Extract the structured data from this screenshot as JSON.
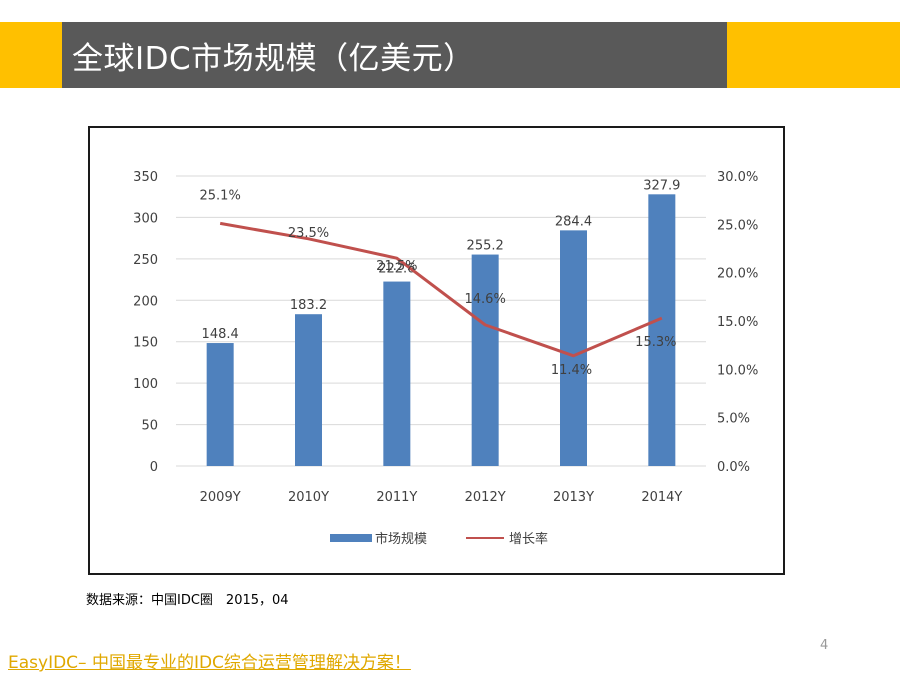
{
  "header": {
    "title": "全球IDC市场规模（亿美元）"
  },
  "footer": {
    "source": "数据来源：中国IDC圈　2015，04",
    "slogan": "EasyIDC– 中国最专业的IDC综合运营管理解决方案！",
    "page_number": "4"
  },
  "colors": {
    "accent": "#FFC000",
    "header_bg": "#595959",
    "bar": "#4F81BD",
    "line": "#C0504D",
    "slogan": "#E0A800"
  },
  "chart_data": {
    "type": "bar",
    "categories": [
      "2009Y",
      "2010Y",
      "2011Y",
      "2012Y",
      "2013Y",
      "2014Y"
    ],
    "series": [
      {
        "name": "市场规模",
        "type": "bar",
        "axis": "left",
        "values": [
          148.4,
          183.2,
          222.6,
          255.2,
          284.4,
          327.9
        ],
        "labels": [
          "148.4",
          "183.2",
          "222.6",
          "255.2",
          "284.4",
          "327.9"
        ]
      },
      {
        "name": "增长率",
        "type": "line",
        "axis": "right",
        "values": [
          25.1,
          23.5,
          21.5,
          14.6,
          11.4,
          15.3
        ],
        "labels": [
          "25.1%",
          "23.5%",
          "21.5%",
          "14.6%",
          "11.4%",
          "15.3%"
        ]
      }
    ],
    "y_left": {
      "min": 0,
      "max": 350,
      "ticks": [
        "0",
        "50",
        "100",
        "150",
        "200",
        "250",
        "300",
        "350"
      ]
    },
    "y_right": {
      "min": 0,
      "max": 30,
      "ticks": [
        "0.0%",
        "5.0%",
        "10.0%",
        "15.0%",
        "20.0%",
        "25.0%",
        "30.0%"
      ]
    },
    "grid": true,
    "legend": "bottom"
  }
}
